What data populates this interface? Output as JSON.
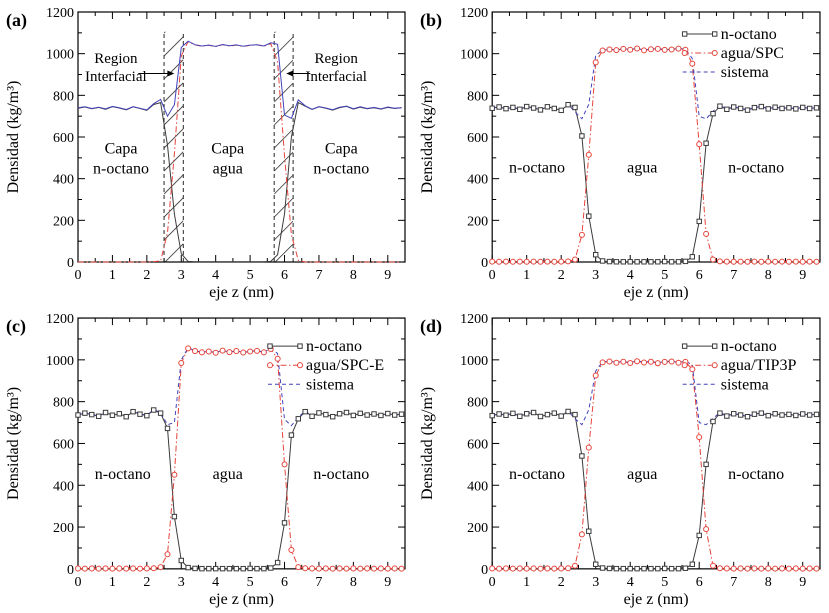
{
  "figure": {
    "background": "#ffffff",
    "xlabel": "eje z (nm)",
    "ylabel": "Densidad (kg/m³)",
    "xlim": [
      0,
      9.5
    ],
    "ylim": [
      0,
      1200
    ],
    "xticks": [
      0,
      1,
      2,
      3,
      4,
      5,
      6,
      7,
      8,
      9
    ],
    "x_minor_step": 0.5,
    "yticks": [
      0,
      200,
      400,
      600,
      800,
      1000,
      1200
    ],
    "y_minor_step": 100,
    "colors": {
      "octano": "#3b3b3b",
      "agua": "#e5443b",
      "sistema": "#4343bb",
      "frame": "#000000",
      "hatch": "#4a4a4a",
      "dashed_line": "#3a3a3a",
      "text": "#000000"
    }
  },
  "chart_data": {
    "type": "line",
    "x_unit": "nm",
    "y_unit": "kg/m3",
    "shared_x": [
      0,
      0.2,
      0.4,
      0.6,
      0.8,
      1,
      1.2,
      1.4,
      1.6,
      1.8,
      2,
      2.2,
      2.4,
      2.6,
      2.8,
      3,
      3.2,
      3.4,
      3.6,
      3.8,
      4,
      4.2,
      4.4,
      4.6,
      4.8,
      5,
      5.2,
      5.4,
      5.6,
      5.8,
      6,
      6.2,
      6.4,
      6.6,
      6.8,
      7,
      7.2,
      7.4,
      7.6,
      7.8,
      8,
      8.2,
      8.4,
      8.6,
      8.8,
      9,
      9.2,
      9.4
    ],
    "panels": [
      {
        "id": "a",
        "label": "(a)",
        "legend": null,
        "series": [
          {
            "id": "octano",
            "name": "n-octano",
            "style": "solid",
            "marker": "none",
            "color_key": "octano",
            "values": [
              738,
              744,
              736,
              742,
              733,
              746,
              739,
              730,
              745,
              737,
              728,
              756,
              765,
              560,
              230,
              40,
              3,
              1,
              1,
              1,
              1,
              1,
              1,
              1,
              1,
              1,
              1,
              1,
              3,
              35,
              230,
              600,
              765,
              748,
              732,
              745,
              738,
              729,
              741,
              747,
              734,
              743,
              736,
              740,
              734,
              742,
              737,
              740
            ]
          },
          {
            "id": "agua",
            "name": "agua",
            "style": "dashdot",
            "marker": "none",
            "color_key": "agua",
            "values": [
              0,
              0,
              0,
              0,
              0,
              0,
              0,
              0,
              0,
              0,
              0,
              2,
              5,
              140,
              520,
              990,
              1058,
              1042,
              1036,
              1040,
              1034,
              1043,
              1037,
              1041,
              1035,
              1040,
              1042,
              1036,
              1048,
              960,
              510,
              130,
              8,
              0,
              0,
              0,
              0,
              0,
              0,
              0,
              0,
              0,
              0,
              0,
              0,
              0,
              0,
              0
            ]
          },
          {
            "id": "sistema",
            "name": "sistema",
            "style": "solid",
            "marker": "none",
            "color_key": "sistema",
            "values": [
              740,
              745,
              737,
              743,
              735,
              747,
              740,
              732,
              746,
              738,
              730,
              760,
              780,
              700,
              755,
              1030,
              1060,
              1043,
              1037,
              1041,
              1035,
              1044,
              1038,
              1042,
              1036,
              1041,
              1043,
              1037,
              1052,
              1045,
              705,
              690,
              778,
              750,
              733,
              746,
              739,
              731,
              743,
              748,
              736,
              745,
              737,
              742,
              735,
              744,
              738,
              741
            ]
          }
        ],
        "region_labels": [
          {
            "lines": [
              "Capa",
              "n-octano"
            ],
            "x": 1.25,
            "y": 520
          },
          {
            "lines": [
              "Capa",
              "agua"
            ],
            "x": 4.35,
            "y": 520
          },
          {
            "lines": [
              "Capa",
              "n-octano"
            ],
            "x": 7.65,
            "y": 520
          }
        ],
        "annotations": [
          {
            "lines": [
              "Region",
              "Interfacial"
            ],
            "text_x": 1.1,
            "text_y": 955,
            "arrow_from": 1.75,
            "arrow_to": 2.8,
            "arrow_y": 905
          },
          {
            "lines": [
              "Region",
              "Interfacial"
            ],
            "text_x": 7.5,
            "text_y": 955,
            "arrow_from": 6.75,
            "arrow_to": 6.05,
            "arrow_y": 905
          }
        ],
        "dashed_vlines": [
          2.5,
          3.06,
          5.7,
          6.25
        ],
        "hatch_bands": [
          [
            2.5,
            3.06
          ],
          [
            5.7,
            6.25
          ]
        ],
        "vline_top": 1105
      },
      {
        "id": "b",
        "label": "(b)",
        "legend": {
          "entries": [
            "octano",
            "agua",
            "sistema"
          ],
          "y": 34
        },
        "series": [
          {
            "id": "octano",
            "name": "n-octano",
            "style": "solid",
            "marker": "square",
            "color_key": "octano",
            "values": [
              738,
              744,
              736,
              742,
              733,
              746,
              739,
              730,
              745,
              737,
              728,
              755,
              742,
              605,
              220,
              35,
              5,
              2,
              1,
              1,
              1,
              1,
              1,
              1,
              1,
              2,
              1,
              1,
              3,
              25,
              195,
              570,
              712,
              748,
              733,
              744,
              737,
              729,
              741,
              746,
              735,
              743,
              737,
              740,
              735,
              742,
              737,
              740
            ]
          },
          {
            "id": "agua",
            "name": "agua/SPC",
            "style": "dashdot",
            "marker": "circle",
            "color_key": "agua",
            "values": [
              2,
              1,
              2,
              1,
              2,
              1,
              2,
              1,
              2,
              1,
              2,
              3,
              12,
              130,
              515,
              958,
              1015,
              1020,
              1017,
              1023,
              1019,
              1025,
              1016,
              1021,
              1023,
              1018,
              1020,
              1024,
              1019,
              952,
              565,
              135,
              12,
              3,
              2,
              1,
              2,
              1,
              2,
              1,
              2,
              1,
              2,
              1,
              2,
              1,
              2,
              1
            ]
          },
          {
            "id": "sistema",
            "name": "sistema",
            "style": "dashed",
            "marker": "none",
            "color_key": "sistema",
            "values": [
              740,
              745,
              737,
              743,
              735,
              747,
              740,
              732,
              746,
              738,
              730,
              757,
              720,
              688,
              757,
              993,
              1016,
              1021,
              1018,
              1024,
              1020,
              1026,
              1017,
              1022,
              1024,
              1020,
              1021,
              1025,
              1022,
              977,
              700,
              687,
              724,
              751,
              735,
              745,
              738,
              731,
              742,
              747,
              736,
              744,
              738,
              741,
              736,
              743,
              738,
              741
            ]
          }
        ],
        "region_labels": [
          {
            "lines": [
              "n-octano"
            ],
            "x": 1.3,
            "y": 430
          },
          {
            "lines": [
              "agua"
            ],
            "x": 4.35,
            "y": 430
          },
          {
            "lines": [
              "n-octano"
            ],
            "x": 7.65,
            "y": 430
          }
        ],
        "annotations": [],
        "dashed_vlines": [],
        "hatch_bands": [],
        "vline_top": 0
      },
      {
        "id": "c",
        "label": "(c)",
        "legend": {
          "entries": [
            "octano",
            "agua",
            "sistema"
          ],
          "y": 40
        },
        "series": [
          {
            "id": "octano",
            "name": "n-octano",
            "style": "solid",
            "marker": "square",
            "color_key": "octano",
            "values": [
              736,
              745,
              738,
              730,
              748,
              735,
              742,
              728,
              752,
              740,
              733,
              760,
              745,
              672,
              250,
              40,
              6,
              2,
              1,
              1,
              1,
              1,
              1,
              1,
              1,
              2,
              1,
              1,
              4,
              30,
              220,
              640,
              718,
              752,
              730,
              746,
              738,
              728,
              742,
              748,
              734,
              744,
              736,
              741,
              734,
              743,
              736,
              740
            ]
          },
          {
            "id": "agua",
            "name": "agua/SPC-E",
            "style": "dashdot",
            "marker": "circle",
            "color_key": "agua",
            "values": [
              2,
              1,
              2,
              1,
              2,
              1,
              2,
              1,
              2,
              1,
              2,
              3,
              8,
              70,
              450,
              985,
              1055,
              1042,
              1036,
              1040,
              1034,
              1044,
              1037,
              1042,
              1035,
              1040,
              1043,
              1036,
              1052,
              1005,
              500,
              90,
              8,
              3,
              2,
              1,
              2,
              1,
              2,
              1,
              2,
              1,
              2,
              1,
              2,
              1,
              2,
              1
            ]
          },
          {
            "id": "sistema",
            "name": "sistema",
            "style": "dashed",
            "marker": "none",
            "color_key": "sistema",
            "values": [
              738,
              746,
              740,
              732,
              750,
              736,
              744,
              730,
              754,
              742,
              735,
              762,
              748,
              690,
              700,
              1000,
              1058,
              1044,
              1037,
              1041,
              1035,
              1045,
              1038,
              1043,
              1036,
              1041,
              1044,
              1037,
              1055,
              1030,
              715,
              685,
              726,
              755,
              732,
              747,
              739,
              730,
              743,
              749,
              735,
              745,
              737,
              742,
              735,
              744,
              737,
              741
            ]
          }
        ],
        "region_labels": [
          {
            "lines": [
              "n-octano"
            ],
            "x": 1.3,
            "y": 430
          },
          {
            "lines": [
              "agua"
            ],
            "x": 4.35,
            "y": 430
          },
          {
            "lines": [
              "n-octano"
            ],
            "x": 7.65,
            "y": 430
          }
        ],
        "annotations": [],
        "dashed_vlines": [],
        "hatch_bands": [],
        "vline_top": 0
      },
      {
        "id": "d",
        "label": "(d)",
        "legend": {
          "entries": [
            "octano",
            "agua",
            "sistema"
          ],
          "y": 40
        },
        "series": [
          {
            "id": "octano",
            "name": "n-octano",
            "style": "solid",
            "marker": "square",
            "color_key": "octano",
            "values": [
              733,
              741,
              735,
              744,
              730,
              742,
              748,
              729,
              738,
              745,
              731,
              753,
              738,
              540,
              180,
              22,
              4,
              2,
              1,
              1,
              1,
              1,
              1,
              1,
              1,
              2,
              1,
              1,
              3,
              22,
              160,
              500,
              705,
              745,
              731,
              742,
              736,
              728,
              740,
              745,
              733,
              742,
              736,
              739,
              734,
              741,
              736,
              739
            ]
          },
          {
            "id": "agua",
            "name": "agua/TIP3P",
            "style": "dashdot",
            "marker": "circle",
            "color_key": "agua",
            "values": [
              2,
              1,
              2,
              1,
              2,
              1,
              2,
              1,
              2,
              1,
              2,
              3,
              15,
              165,
              580,
              925,
              988,
              992,
              986,
              991,
              985,
              993,
              987,
              991,
              984,
              990,
              992,
              986,
              990,
              955,
              630,
              190,
              15,
              3,
              2,
              1,
              2,
              1,
              2,
              1,
              2,
              1,
              2,
              1,
              2,
              1,
              2,
              1
            ]
          },
          {
            "id": "sistema",
            "name": "sistema",
            "style": "dashed",
            "marker": "none",
            "color_key": "sistema",
            "values": [
              735,
              742,
              737,
              745,
              732,
              743,
              750,
              730,
              740,
              747,
              733,
              755,
              718,
              690,
              762,
              947,
              990,
              994,
              988,
              993,
              987,
              995,
              989,
              993,
              986,
              992,
              994,
              988,
              993,
              977,
              700,
              690,
              720,
              748,
              733,
              743,
              738,
              729,
              741,
              746,
              735,
              743,
              737,
              740,
              735,
              742,
              737,
              740
            ]
          }
        ],
        "region_labels": [
          {
            "lines": [
              "n-octano"
            ],
            "x": 1.3,
            "y": 430
          },
          {
            "lines": [
              "agua"
            ],
            "x": 4.35,
            "y": 430
          },
          {
            "lines": [
              "n-octano"
            ],
            "x": 7.65,
            "y": 430
          }
        ],
        "annotations": [],
        "dashed_vlines": [],
        "hatch_bands": [],
        "vline_top": 0
      }
    ]
  }
}
